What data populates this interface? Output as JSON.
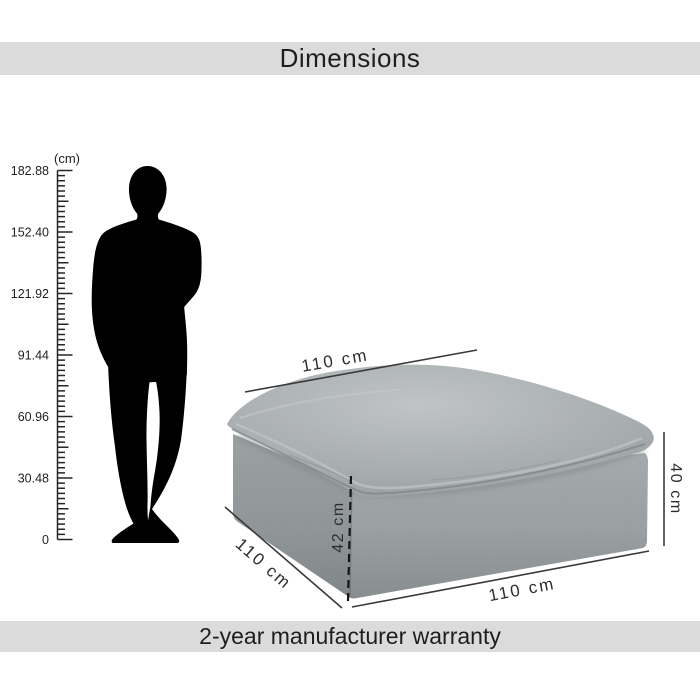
{
  "header": {
    "title": "Dimensions"
  },
  "footer": {
    "warranty": "2-year manufacturer warranty"
  },
  "ruler": {
    "unit": "(cm)",
    "ticks": [
      "182.88",
      "152.40",
      "121.92",
      "91.44",
      "60.96",
      "30.48",
      "0"
    ]
  },
  "dimensions": {
    "top_width": "110 cm",
    "side_depth": "110 cm",
    "bottom_width": "110 cm",
    "height_right": "40 cm",
    "height_front": "42 cm"
  },
  "colors": {
    "band": "#dbdbdb",
    "line": "#3a3a3a",
    "silhouette": "#000000",
    "fabric_light": "#c3c7c8",
    "fabric_mid": "#a9aeb0",
    "fabric_dark": "#8f9597",
    "fabric_shadow": "#7c8284"
  }
}
